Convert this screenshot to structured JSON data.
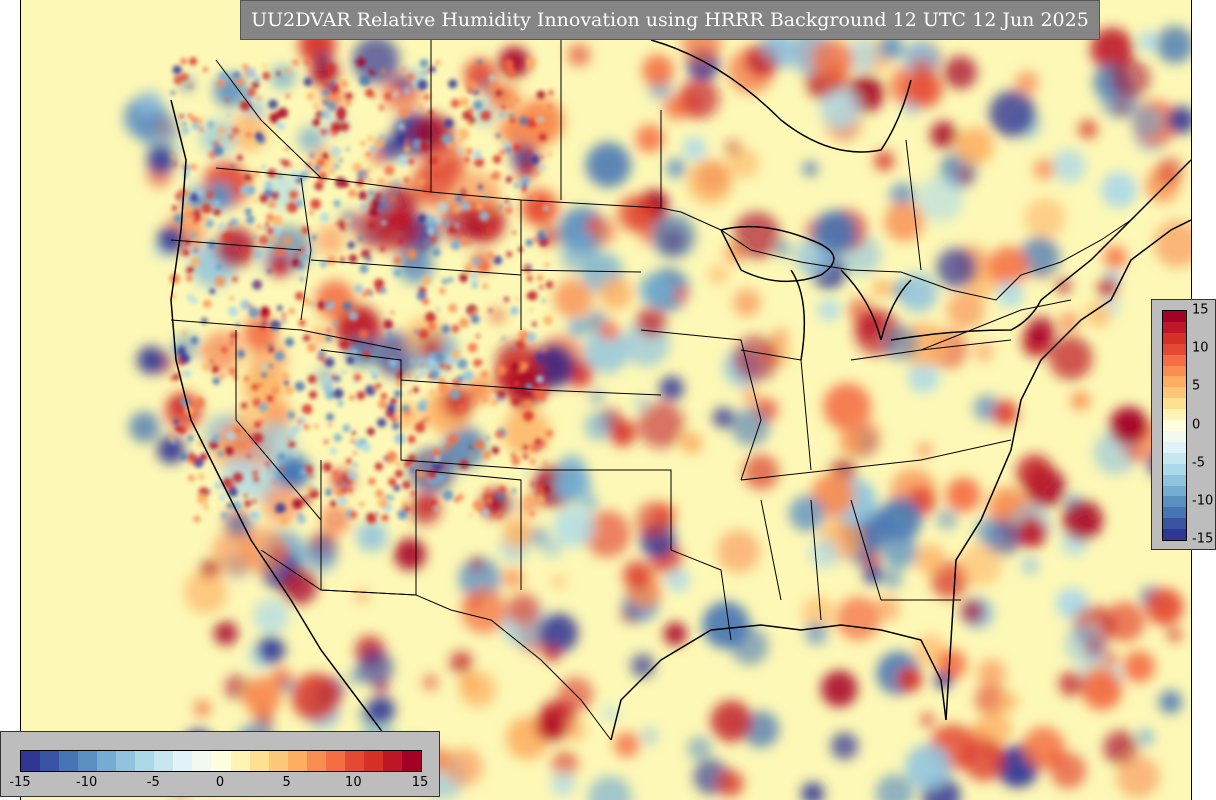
{
  "title": "UU2DVAR Relative Humidity Innovation using HRRR Background 12 UTC 12 Jun 2025",
  "colorbar": {
    "ticks": [
      "-15",
      "-10",
      "-5",
      "0",
      "5",
      "10",
      "15"
    ],
    "min": -15,
    "max": 15,
    "colors": [
      "#313695",
      "#3a54a4",
      "#4575b4",
      "#5b8fc2",
      "#74add1",
      "#91c3de",
      "#abd9e9",
      "#c6e6f0",
      "#e0f3f8",
      "#f1f9f0",
      "#ffffe0",
      "#fff3b5",
      "#fee090",
      "#fdc77a",
      "#fdae61",
      "#f88d52",
      "#f46d43",
      "#e34933",
      "#d73027",
      "#bf1727",
      "#a50026"
    ]
  },
  "map": {
    "background_color": "#fdf8b6",
    "boundary_color": "#000000"
  }
}
